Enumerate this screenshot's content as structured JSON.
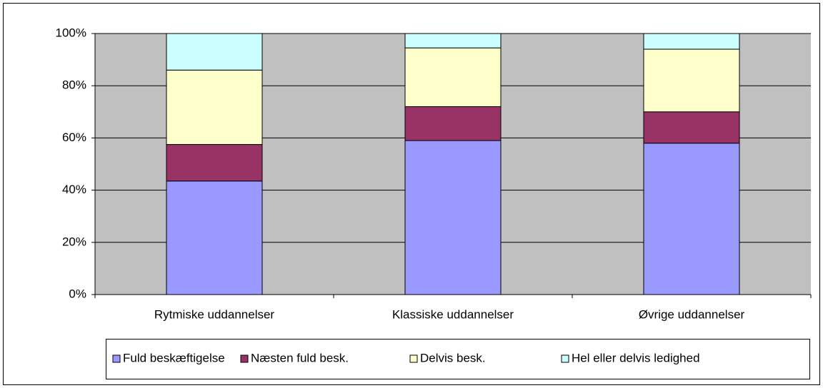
{
  "chart_data": {
    "type": "stacked_bar",
    "categories": [
      "Rytmiske uddannelser",
      "Klassiske uddannelser",
      "Øvrige uddannelser"
    ],
    "series": [
      {
        "name": "Fuld beskæftigelse",
        "color": "#9999ff",
        "values": [
          43.5,
          59,
          58
        ]
      },
      {
        "name": "Næsten fuld besk.",
        "color": "#993366",
        "values": [
          14,
          13,
          12
        ]
      },
      {
        "name": "Delvis besk.",
        "color": "#ffffcc",
        "values": [
          28.5,
          22.5,
          24
        ]
      },
      {
        "name": "Hel eller delvis ledighed",
        "color": "#ccffff",
        "values": [
          14,
          5.5,
          6
        ]
      }
    ],
    "ylim": [
      0,
      100
    ],
    "yticks": [
      {
        "value": 0,
        "label": "0%"
      },
      {
        "value": 20,
        "label": "20%"
      },
      {
        "value": 40,
        "label": "40%"
      },
      {
        "value": 60,
        "label": "60%"
      },
      {
        "value": 80,
        "label": "80%"
      },
      {
        "value": 100,
        "label": "100%"
      }
    ],
    "grid": true,
    "legend": "bottom"
  }
}
